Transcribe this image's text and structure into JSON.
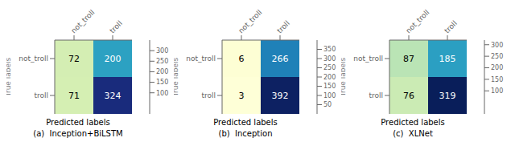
{
  "chart_data": [
    {
      "type": "heatmap",
      "title": "(a)  Inception+BiLSTM",
      "xlabel": "Predicted labels",
      "ylabel": "True labels",
      "categories": [
        "not_troll",
        "troll"
      ],
      "values": [
        [
          72,
          200
        ],
        [
          71,
          324
        ]
      ],
      "colorbar_range": [
        0,
        350
      ],
      "colorbar_ticks": [
        100,
        150,
        200,
        250,
        300
      ],
      "color": "YlGnBu",
      "data_labels": true
    },
    {
      "type": "heatmap",
      "title": "(b)  Inception",
      "xlabel": "Predicted labels",
      "ylabel": "True labels",
      "categories": [
        "not_troll",
        "troll"
      ],
      "values": [
        [
          6,
          266
        ],
        [
          3,
          392
        ]
      ],
      "colorbar_range": [
        0,
        400
      ],
      "colorbar_ticks": [
        50,
        100,
        150,
        200,
        250,
        300,
        350
      ],
      "color": "YlGnBu",
      "data_labels": true
    },
    {
      "type": "heatmap",
      "title": "(c)  XLNet",
      "xlabel": "Predicted labels",
      "ylabel": "True labels",
      "categories": [
        "not_troll",
        "troll"
      ],
      "values": [
        [
          87,
          185
        ],
        [
          76,
          319
        ]
      ],
      "colorbar_range": [
        0,
        320
      ],
      "colorbar_ticks": [
        100,
        150,
        200,
        250,
        300
      ],
      "color": "YlGnBu",
      "data_labels": true
    }
  ]
}
